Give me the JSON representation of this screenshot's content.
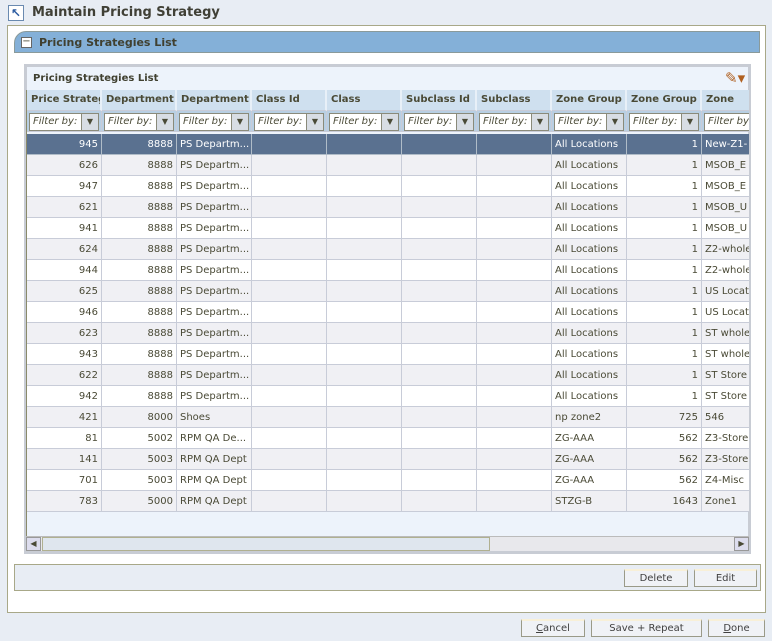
{
  "window": {
    "title": "Maintain Pricing Strategy",
    "icon": "arrow-up-left-icon"
  },
  "section": {
    "title": "Pricing Strategies List"
  },
  "panel": {
    "title": "Pricing Strategies List",
    "tool_icon": "pencil-icon"
  },
  "table": {
    "columns": [
      "Price Strategy",
      "Department Id",
      "Department",
      "Class Id",
      "Class",
      "Subclass Id",
      "Subclass",
      "Zone Group",
      "Zone Group Id",
      "Zone"
    ],
    "filter_placeholder": "Filter by:",
    "numeric_columns": [
      0,
      1,
      8
    ],
    "selected_row": 0,
    "rows": [
      [
        "945",
        "8888",
        "PS Departm...",
        "",
        "",
        "",
        "",
        "All Locations",
        "1",
        "New-Z1-"
      ],
      [
        "626",
        "8888",
        "PS Departm...",
        "",
        "",
        "",
        "",
        "All Locations",
        "1",
        "MSOB_E"
      ],
      [
        "947",
        "8888",
        "PS Departm...",
        "",
        "",
        "",
        "",
        "All Locations",
        "1",
        "MSOB_E"
      ],
      [
        "621",
        "8888",
        "PS Departm...",
        "",
        "",
        "",
        "",
        "All Locations",
        "1",
        "MSOB_U"
      ],
      [
        "941",
        "8888",
        "PS Departm...",
        "",
        "",
        "",
        "",
        "All Locations",
        "1",
        "MSOB_U"
      ],
      [
        "624",
        "8888",
        "PS Departm...",
        "",
        "",
        "",
        "",
        "All Locations",
        "1",
        "Z2-whole"
      ],
      [
        "944",
        "8888",
        "PS Departm...",
        "",
        "",
        "",
        "",
        "All Locations",
        "1",
        "Z2-whole"
      ],
      [
        "625",
        "8888",
        "PS Departm...",
        "",
        "",
        "",
        "",
        "All Locations",
        "1",
        "US Locat"
      ],
      [
        "946",
        "8888",
        "PS Departm...",
        "",
        "",
        "",
        "",
        "All Locations",
        "1",
        "US Locat"
      ],
      [
        "623",
        "8888",
        "PS Departm...",
        "",
        "",
        "",
        "",
        "All Locations",
        "1",
        "ST whole"
      ],
      [
        "943",
        "8888",
        "PS Departm...",
        "",
        "",
        "",
        "",
        "All Locations",
        "1",
        "ST whole"
      ],
      [
        "622",
        "8888",
        "PS Departm...",
        "",
        "",
        "",
        "",
        "All Locations",
        "1",
        "ST Store"
      ],
      [
        "942",
        "8888",
        "PS Departm...",
        "",
        "",
        "",
        "",
        "All Locations",
        "1",
        "ST Store"
      ],
      [
        "421",
        "8000",
        "Shoes",
        "",
        "",
        "",
        "",
        "np zone2",
        "725",
        "546"
      ],
      [
        "81",
        "5002",
        "RPM QA De...",
        "",
        "",
        "",
        "",
        "ZG-AAA",
        "562",
        "Z3-Store"
      ],
      [
        "141",
        "5003",
        "RPM QA Dept",
        "",
        "",
        "",
        "",
        "ZG-AAA",
        "562",
        "Z3-Store"
      ],
      [
        "701",
        "5003",
        "RPM QA Dept",
        "",
        "",
        "",
        "",
        "ZG-AAA",
        "562",
        "Z4-Misc"
      ],
      [
        "783",
        "5000",
        "RPM QA Dept",
        "",
        "",
        "",
        "",
        "STZG-B",
        "1643",
        "Zone1"
      ]
    ]
  },
  "actions": {
    "delete": "Delete",
    "edit": "Edit"
  },
  "footer": {
    "cancel": "Cancel",
    "save_repeat": "Save + Repeat",
    "done": "Done"
  },
  "colors": {
    "header_blue": "#84b0d8",
    "selected_row": "#5a7190"
  }
}
